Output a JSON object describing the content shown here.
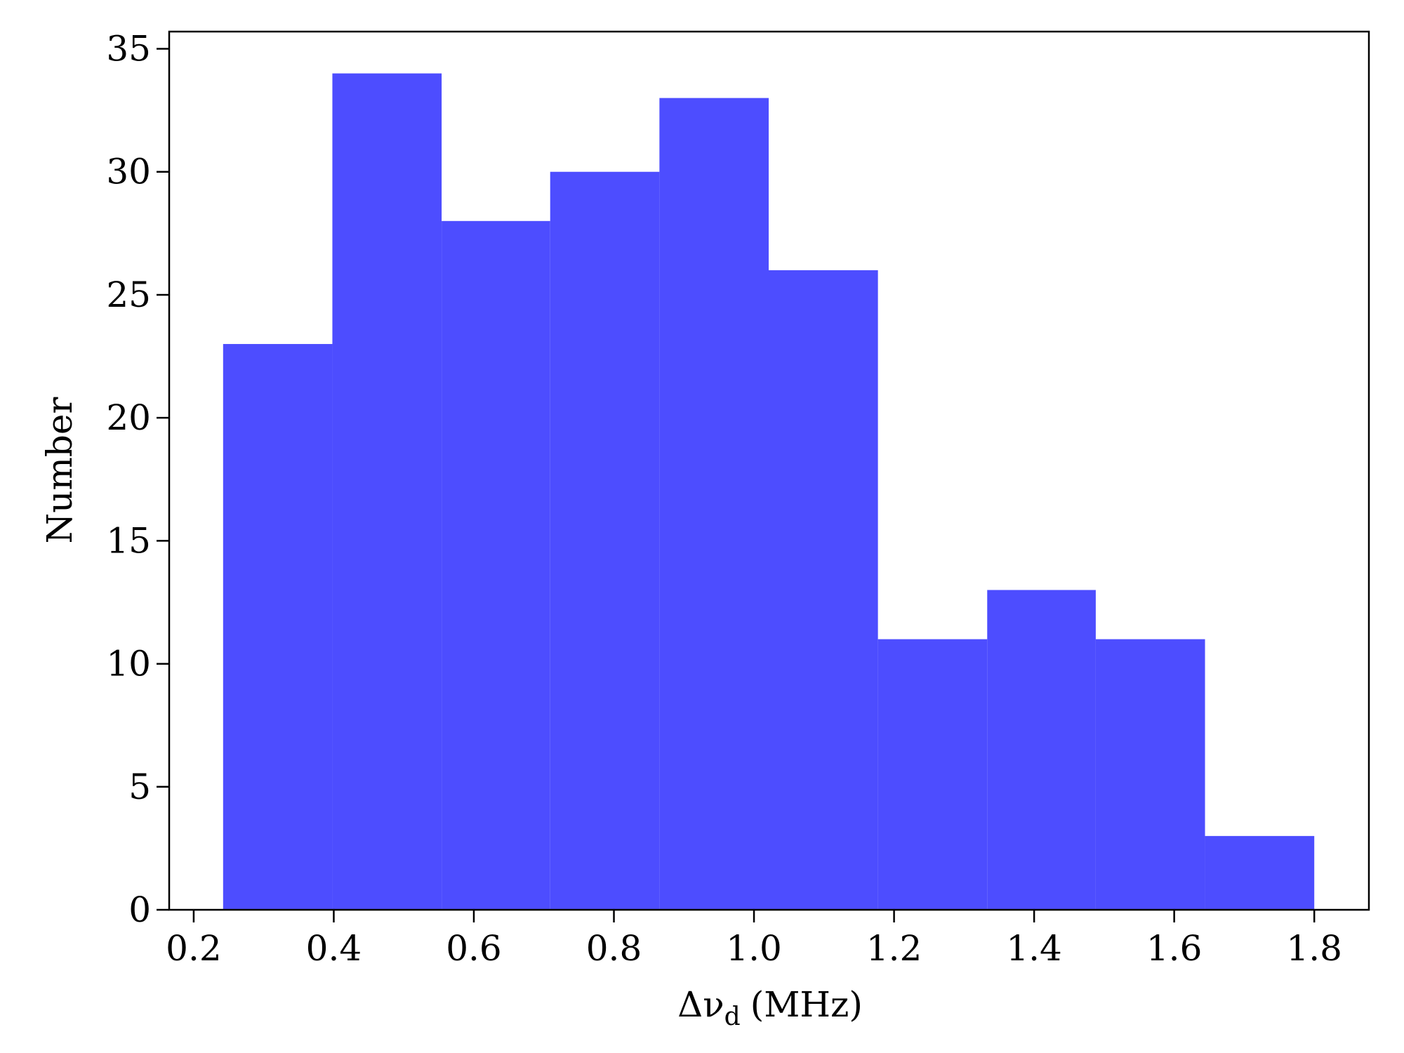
{
  "chart_data": {
    "type": "histogram",
    "xlabel": {
      "symbol": "Δν",
      "subscript": "d",
      "unit": "(MHz)"
    },
    "ylabel": "Number",
    "bins": [
      0.242,
      0.398,
      0.554,
      0.709,
      0.865,
      1.021,
      1.177,
      1.333,
      1.488,
      1.644,
      1.8
    ],
    "values": [
      23,
      34,
      28,
      30,
      33,
      26,
      11,
      13,
      11,
      3
    ],
    "color": "#4d4dff",
    "xlim": [
      0.165,
      1.878
    ],
    "xticks": [
      {
        "value": 0.2,
        "label": "0.2"
      },
      {
        "value": 0.4,
        "label": "0.4"
      },
      {
        "value": 0.6,
        "label": "0.6"
      },
      {
        "value": 0.8,
        "label": "0.8"
      },
      {
        "value": 1.0,
        "label": "1.0"
      },
      {
        "value": 1.2,
        "label": "1.2"
      },
      {
        "value": 1.4,
        "label": "1.4"
      },
      {
        "value": 1.6,
        "label": "1.6"
      },
      {
        "value": 1.8,
        "label": "1.8"
      }
    ],
    "ylim": [
      0,
      35.7
    ],
    "yticks": [
      0,
      5,
      10,
      15,
      20,
      25,
      30,
      35
    ]
  }
}
